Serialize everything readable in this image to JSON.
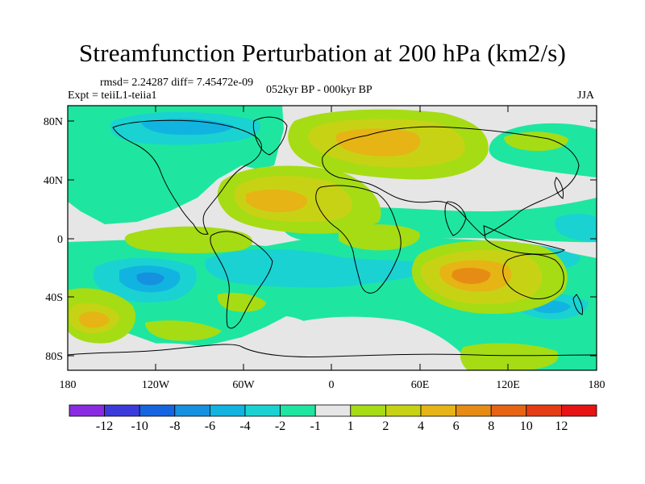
{
  "title": "Streamfunction Perturbation at 200 hPa (km2/s)",
  "stats": "rmsd= 2.24287 diff= 7.45472e-09",
  "experiment": "Expt = teiiL1-teiia1",
  "period": "052kyr BP - 000kyr BP",
  "season": "JJA",
  "map": {
    "lon_ticks": [
      "180",
      "120W",
      "60W",
      "0",
      "60E",
      "120E",
      "180"
    ],
    "lat_ticks": [
      "80N",
      "40N",
      "0",
      "40S",
      "80S"
    ]
  },
  "colorbar": {
    "labels": [
      "-12",
      "-10",
      "-8",
      "-6",
      "-4",
      "-2",
      "-1",
      "1",
      "2",
      "4",
      "6",
      "8",
      "10",
      "12"
    ],
    "colors": [
      "#8a2be2",
      "#3b3bdc",
      "#1565e0",
      "#1591e0",
      "#11b4e0",
      "#1ad2d2",
      "#1ee6a0",
      "#e6e6e6",
      "#a6dc14",
      "#c8d214",
      "#e6b414",
      "#e68c14",
      "#e66414",
      "#e63c14",
      "#e61414"
    ]
  }
}
